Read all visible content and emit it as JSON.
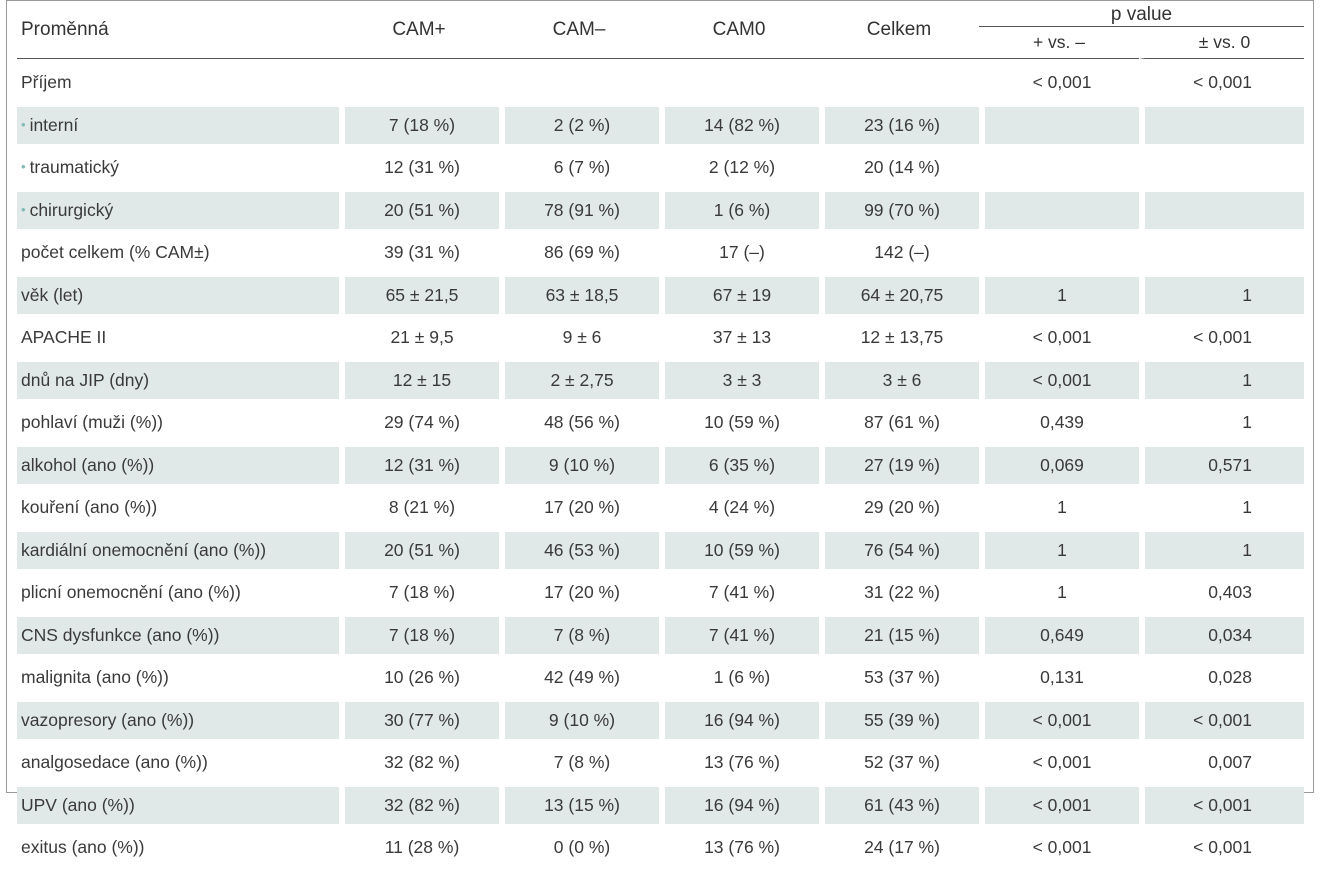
{
  "header": {
    "variable": "Proměnná",
    "cam_plus": "CAM+",
    "cam_minus": "CAM–",
    "cam_zero": "CAM0",
    "total": "Celkem",
    "p_value": "p value",
    "p_plus_minus": "+ vs. –",
    "p_pm_zero": "± vs. 0"
  },
  "rows": [
    {
      "label": "Příjem",
      "bullet": false,
      "shaded": false,
      "values": [
        "",
        "",
        "",
        "",
        "< 0,001",
        "< 0,001"
      ]
    },
    {
      "label": "interní",
      "bullet": true,
      "shaded": true,
      "values": [
        "7 (18 %)",
        "2 (2 %)",
        "14 (82 %)",
        "23 (16 %)",
        "",
        ""
      ]
    },
    {
      "label": "traumatický",
      "bullet": true,
      "shaded": false,
      "values": [
        "12 (31 %)",
        "6 (7 %)",
        "2 (12 %)",
        "20 (14 %)",
        "",
        ""
      ]
    },
    {
      "label": "chirurgický",
      "bullet": true,
      "shaded": true,
      "values": [
        "20 (51 %)",
        "78 (91 %)",
        "1 (6 %)",
        "99 (70 %)",
        "",
        ""
      ]
    },
    {
      "label": "počet celkem (% CAM±)",
      "bullet": false,
      "shaded": false,
      "values": [
        "39 (31 %)",
        "86 (69 %)",
        "17 (–)",
        "142 (–)",
        "",
        ""
      ]
    },
    {
      "label": "věk (let)",
      "bullet": false,
      "shaded": true,
      "values": [
        "65 ± 21,5",
        "63 ± 18,5",
        "67 ± 19",
        "64 ± 20,75",
        "1",
        "1"
      ]
    },
    {
      "label": "APACHE II",
      "bullet": false,
      "shaded": false,
      "values": [
        "21 ± 9,5",
        "9 ± 6",
        "37 ± 13",
        "12 ± 13,75",
        "< 0,001",
        "< 0,001"
      ]
    },
    {
      "label": "dnů na JIP (dny)",
      "bullet": false,
      "shaded": true,
      "values": [
        "12 ± 15",
        "2 ± 2,75",
        "3 ± 3",
        "3 ± 6",
        "< 0,001",
        "1"
      ]
    },
    {
      "label": "pohlaví (muži (%))",
      "bullet": false,
      "shaded": false,
      "values": [
        "29 (74 %)",
        "48 (56 %)",
        "10 (59 %)",
        "87 (61 %)",
        "0,439",
        "1"
      ]
    },
    {
      "label": "alkohol (ano (%))",
      "bullet": false,
      "shaded": true,
      "values": [
        "12 (31 %)",
        "9 (10 %)",
        "6 (35 %)",
        "27 (19 %)",
        "0,069",
        "0,571"
      ]
    },
    {
      "label": "kouření (ano (%))",
      "bullet": false,
      "shaded": false,
      "values": [
        "8 (21 %)",
        "17 (20 %)",
        "4 (24 %)",
        "29 (20 %)",
        "1",
        "1"
      ]
    },
    {
      "label": "kardiální onemocnění (ano (%))",
      "bullet": false,
      "shaded": true,
      "values": [
        "20 (51 %)",
        "46 (53 %)",
        "10 (59 %)",
        "76 (54 %)",
        "1",
        "1"
      ]
    },
    {
      "label": "plicní onemocnění (ano (%))",
      "bullet": false,
      "shaded": false,
      "values": [
        "7 (18 %)",
        "17 (20 %)",
        "7 (41 %)",
        "31 (22 %)",
        "1",
        "0,403"
      ]
    },
    {
      "label": "CNS dysfunkce (ano (%))",
      "bullet": false,
      "shaded": true,
      "values": [
        "7 (18 %)",
        "7 (8 %)",
        "7 (41 %)",
        "21 (15 %)",
        "0,649",
        "0,034"
      ]
    },
    {
      "label": "malignita (ano (%))",
      "bullet": false,
      "shaded": false,
      "values": [
        "10 (26 %)",
        "42 (49 %)",
        "1 (6 %)",
        "53 (37 %)",
        "0,131",
        "0,028"
      ]
    },
    {
      "label": "vazopresory (ano (%))",
      "bullet": false,
      "shaded": true,
      "values": [
        "30 (77 %)",
        "9 (10 %)",
        "16 (94 %)",
        "55 (39 %)",
        "< 0,001",
        "< 0,001"
      ]
    },
    {
      "label": "analgosedace (ano (%))",
      "bullet": false,
      "shaded": false,
      "values": [
        "32 (82 %)",
        "7 (8 %)",
        "13 (76 %)",
        "52 (37 %)",
        "< 0,001",
        "0,007"
      ]
    },
    {
      "label": "UPV (ano (%))",
      "bullet": false,
      "shaded": true,
      "values": [
        "32 (82 %)",
        "13 (15 %)",
        "16 (94 %)",
        "61 (43 %)",
        "< 0,001",
        "< 0,001"
      ]
    },
    {
      "label": "exitus (ano (%))",
      "bullet": false,
      "shaded": false,
      "values": [
        "11 (28 %)",
        "0 (0 %)",
        "13 (76 %)",
        "24 (17 %)",
        "< 0,001",
        "< 0,001"
      ]
    }
  ]
}
